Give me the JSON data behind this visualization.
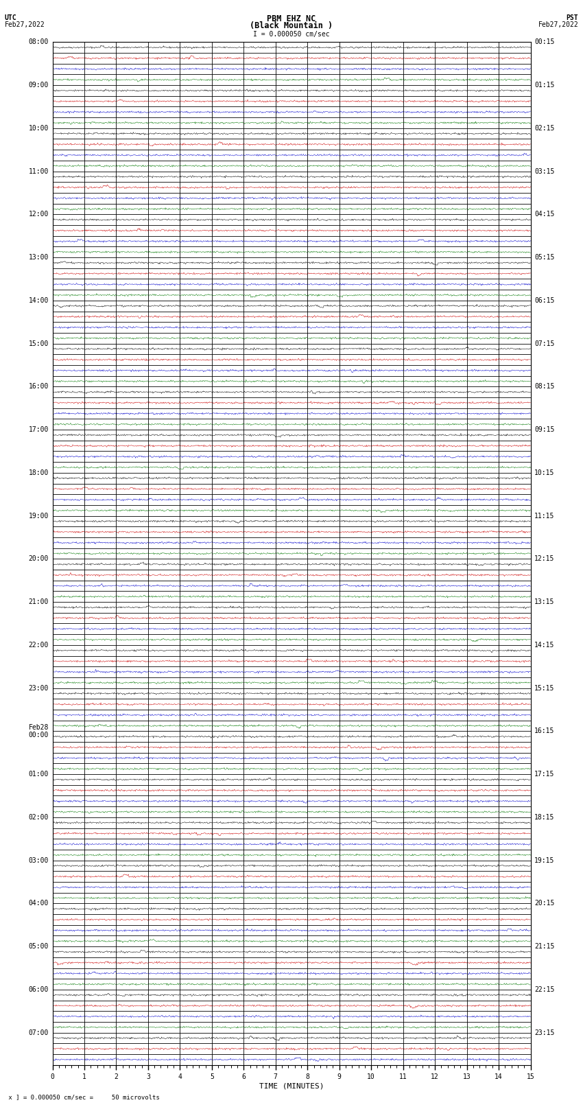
{
  "title_line1": "PBM EHZ NC",
  "title_line2": "(Black Mountain )",
  "scale_label": "I = 0.000050 cm/sec",
  "utc_label": "UTC",
  "utc_date": "Feb27,2022",
  "pst_label": "PST",
  "pst_date": "Feb27,2022",
  "xlabel": "TIME (MINUTES)",
  "bottom_note": " x ] = 0.000050 cm/sec =     50 microvolts",
  "xlim": [
    0,
    15
  ],
  "xticks": [
    0,
    1,
    2,
    3,
    4,
    5,
    6,
    7,
    8,
    9,
    10,
    11,
    12,
    13,
    14,
    15
  ],
  "utc_times": [
    "08:00",
    "",
    "",
    "",
    "09:00",
    "",
    "",
    "",
    "10:00",
    "",
    "",
    "",
    "11:00",
    "",
    "",
    "",
    "12:00",
    "",
    "",
    "",
    "13:00",
    "",
    "",
    "",
    "14:00",
    "",
    "",
    "",
    "15:00",
    "",
    "",
    "",
    "16:00",
    "",
    "",
    "",
    "17:00",
    "",
    "",
    "",
    "18:00",
    "",
    "",
    "",
    "19:00",
    "",
    "",
    "",
    "20:00",
    "",
    "",
    "",
    "21:00",
    "",
    "",
    "",
    "22:00",
    "",
    "",
    "",
    "23:00",
    "",
    "",
    "",
    "Feb28\n00:00",
    "",
    "",
    "",
    "01:00",
    "",
    "",
    "",
    "02:00",
    "",
    "",
    "",
    "03:00",
    "",
    "",
    "",
    "04:00",
    "",
    "",
    "",
    "05:00",
    "",
    "",
    "",
    "06:00",
    "",
    "",
    "",
    "07:00",
    "",
    ""
  ],
  "pst_times": [
    "00:15",
    "",
    "",
    "",
    "01:15",
    "",
    "",
    "",
    "02:15",
    "",
    "",
    "",
    "03:15",
    "",
    "",
    "",
    "04:15",
    "",
    "",
    "",
    "05:15",
    "",
    "",
    "",
    "06:15",
    "",
    "",
    "",
    "07:15",
    "",
    "",
    "",
    "08:15",
    "",
    "",
    "",
    "09:15",
    "",
    "",
    "",
    "10:15",
    "",
    "",
    "",
    "11:15",
    "",
    "",
    "",
    "12:15",
    "",
    "",
    "",
    "13:15",
    "",
    "",
    "",
    "14:15",
    "",
    "",
    "",
    "15:15",
    "",
    "",
    "",
    "16:15",
    "",
    "",
    "",
    "17:15",
    "",
    "",
    "",
    "18:15",
    "",
    "",
    "",
    "19:15",
    "",
    "",
    "",
    "20:15",
    "",
    "",
    "",
    "21:15",
    "",
    "",
    "",
    "22:15",
    "",
    "",
    "",
    "23:15",
    "",
    ""
  ],
  "n_rows": 95,
  "bg_color": "white",
  "trace_color_black": "#000000",
  "trace_color_red": "#cc0000",
  "trace_color_blue": "#0000cc",
  "trace_color_green": "#007700",
  "grid_color": "#000000",
  "font_color": "#000000",
  "title_fontsize": 8.5,
  "label_fontsize": 7.0,
  "tick_fontsize": 7.0
}
